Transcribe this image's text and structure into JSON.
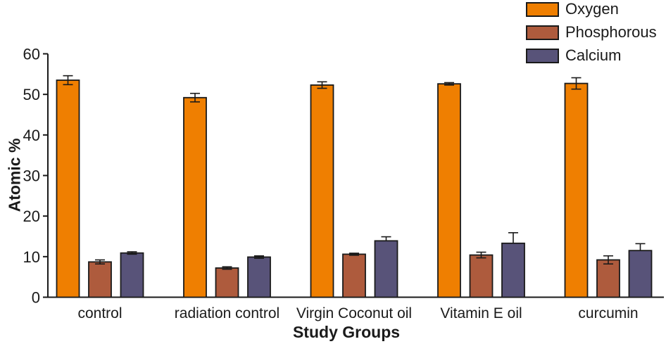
{
  "chart_data": {
    "type": "bar",
    "title": "",
    "xlabel": "Study Groups",
    "ylabel": "Atomic %",
    "ylim": [
      0,
      60
    ],
    "ytick_step": 10,
    "ytick_labels": [
      "0",
      "10",
      "20",
      "30",
      "40",
      "50",
      "60"
    ],
    "grid": false,
    "legend_position": "top-right",
    "axis_color": "#1a1a1a",
    "background_color": "#ffffff",
    "categories": [
      "control",
      "radiation control",
      "Virgin Coconut oil",
      "Vitamin E oil",
      "curcumin"
    ],
    "series": [
      {
        "name": "Oxygen",
        "color": "#EF7F01",
        "values": [
          53.5,
          49.2,
          52.3,
          52.6,
          52.7
        ],
        "errors_up": [
          1.1,
          1.05,
          0.8,
          0.3,
          1.4
        ],
        "errors_down": [
          1.1,
          1.05,
          0.8,
          0.3,
          1.4
        ]
      },
      {
        "name": "Phosphorous",
        "color": "#AE5B3D",
        "values": [
          8.7,
          7.2,
          10.6,
          10.4,
          9.2
        ],
        "errors_up": [
          0.5,
          0.3,
          0.25,
          0.7,
          1.0
        ],
        "errors_down": [
          0.5,
          0.3,
          0.25,
          0.7,
          1.0
        ]
      },
      {
        "name": "Calcium",
        "color": "#585379",
        "values": [
          10.9,
          9.9,
          13.9,
          13.3,
          11.5
        ],
        "errors_up": [
          0.3,
          0.3,
          1.0,
          2.6,
          1.7
        ],
        "errors_down": [
          0.3,
          0.3,
          0,
          0,
          0
        ]
      }
    ]
  }
}
